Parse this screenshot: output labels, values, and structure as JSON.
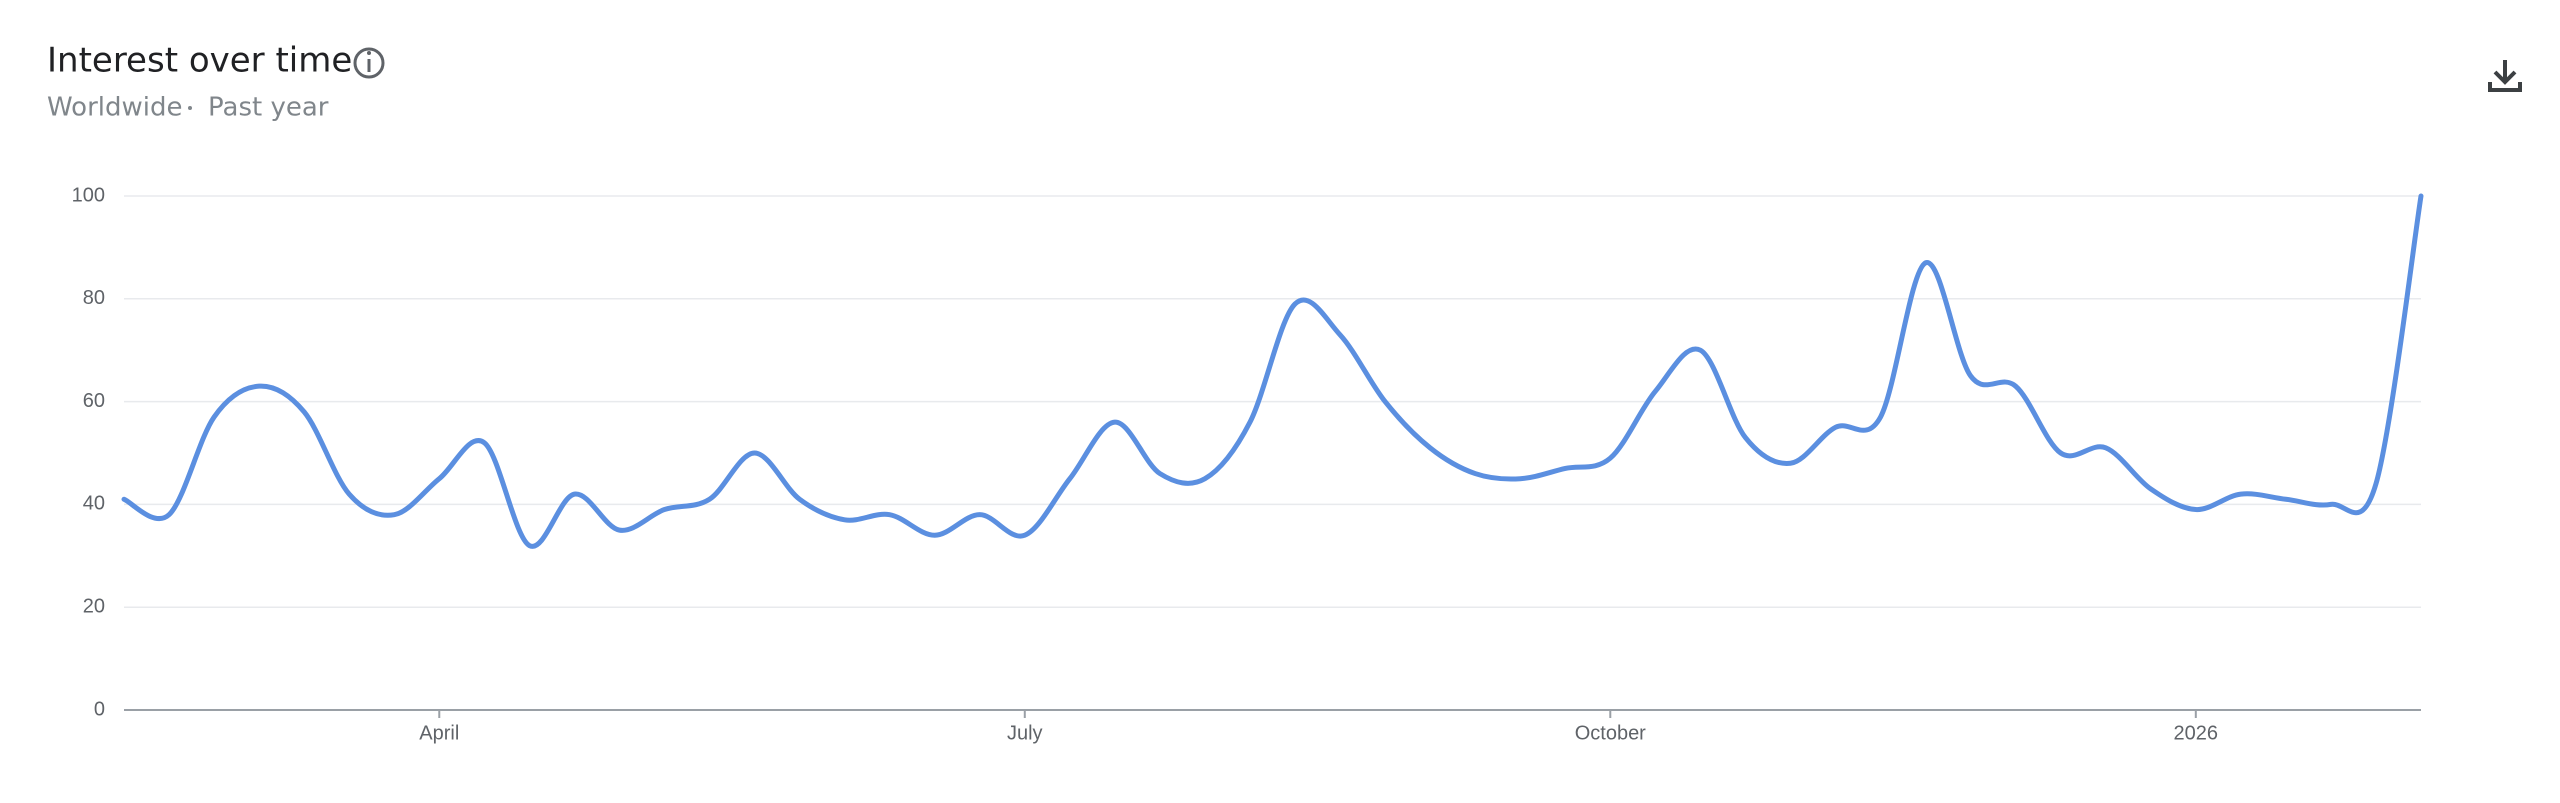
{
  "chart_data": {
    "type": "line",
    "title": "Interest over time",
    "region": "Worldwide",
    "period": "Past year",
    "categories": [
      null,
      null,
      null,
      null,
      null,
      null,
      null,
      "April",
      null,
      null,
      null,
      null,
      null,
      null,
      null,
      null,
      null,
      null,
      null,
      null,
      "July",
      null,
      null,
      null,
      null,
      null,
      null,
      null,
      null,
      null,
      null,
      null,
      null,
      "October",
      null,
      null,
      null,
      null,
      null,
      null,
      null,
      null,
      null,
      null,
      null,
      null,
      "2026",
      null,
      null,
      null,
      null,
      null
    ],
    "series": [
      {
        "name": "Interest",
        "color": "#5b8fe0",
        "values": [
          41,
          38,
          57,
          63,
          58,
          42,
          38,
          45,
          52,
          32,
          42,
          35,
          39,
          41,
          50,
          41,
          37,
          38,
          34,
          38,
          34,
          45,
          56,
          46,
          45,
          56,
          79,
          73,
          60,
          51,
          46,
          45,
          47,
          49,
          62,
          70,
          53,
          48,
          55,
          57,
          87,
          65,
          63,
          50,
          51,
          43,
          39,
          42,
          41,
          40,
          44,
          100
        ]
      }
    ],
    "ylim": [
      0,
      100
    ],
    "yticks": [
      0,
      20,
      40,
      60,
      80,
      100
    ],
    "grid": true
  }
}
